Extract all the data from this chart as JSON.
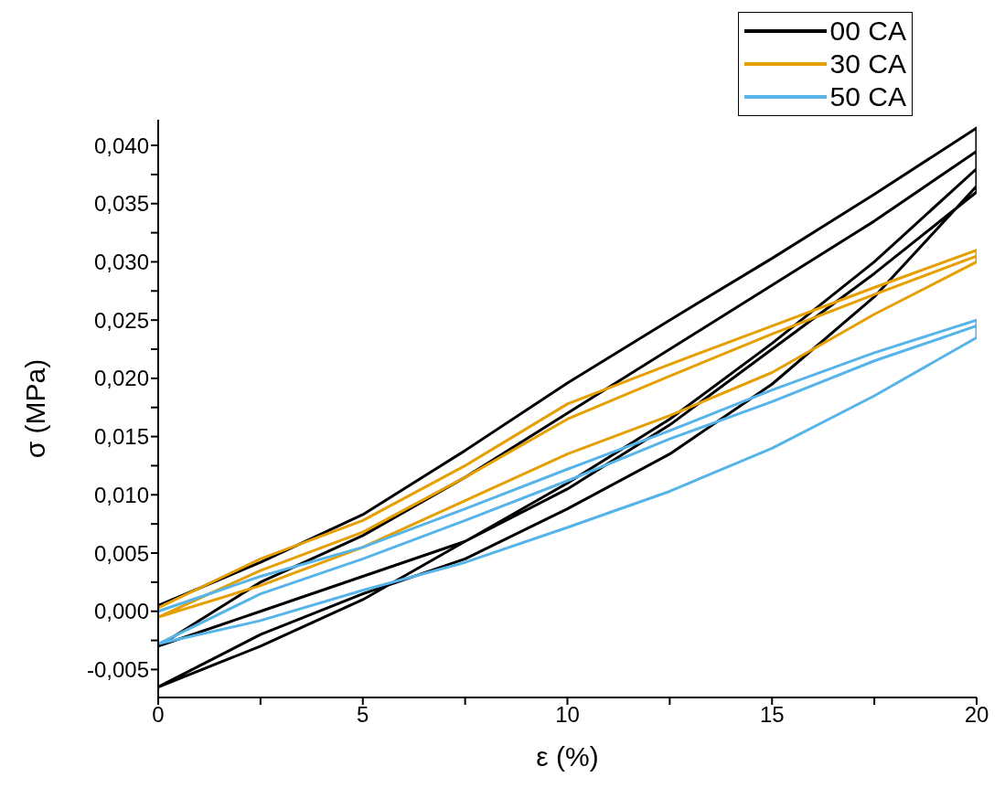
{
  "chart_data": {
    "type": "line",
    "xlabel": "ε (%)",
    "ylabel": "σ (MPa)",
    "xlim": [
      0,
      20
    ],
    "xticks": [
      0,
      {
        "value": 2.5,
        "label": null
      },
      5,
      {
        "value": 7.5,
        "label": null
      },
      10,
      {
        "value": 12.5,
        "label": null
      },
      15,
      {
        "value": 17.5,
        "label": null
      },
      20
    ],
    "ylim": [
      -0.0074,
      0.0422
    ],
    "yticks": [
      {
        "value": -0.005,
        "label": "-0,005"
      },
      {
        "value": -0.0025,
        "label": null
      },
      {
        "value": 0,
        "label": "0,000"
      },
      {
        "value": 0.0025,
        "label": null
      },
      {
        "value": 0.005,
        "label": "0,005"
      },
      {
        "value": 0.0075,
        "label": null
      },
      {
        "value": 0.01,
        "label": "0,010"
      },
      {
        "value": 0.0125,
        "label": null
      },
      {
        "value": 0.015,
        "label": "0,015"
      },
      {
        "value": 0.0175,
        "label": null
      },
      {
        "value": 0.02,
        "label": "0,020"
      },
      {
        "value": 0.0225,
        "label": null
      },
      {
        "value": 0.025,
        "label": "0,025"
      },
      {
        "value": 0.0275,
        "label": null
      },
      {
        "value": 0.03,
        "label": "0,030"
      },
      {
        "value": 0.0325,
        "label": null
      },
      {
        "value": 0.035,
        "label": "0,035"
      },
      {
        "value": 0.0375,
        "label": null
      },
      {
        "value": 0.04,
        "label": "0,040"
      }
    ],
    "legend": "top right",
    "marker": "none",
    "line_style": "solid",
    "series": [
      {
        "name": "00 CA",
        "color": "#000000",
        "x": [
          0,
          2.5,
          5,
          7.5,
          10,
          12.5,
          15,
          17.5,
          20,
          20,
          17.5,
          15,
          12.5,
          10,
          7.5,
          5,
          2.5,
          0,
          0,
          2.5,
          5,
          7.5,
          10,
          12.5,
          15,
          17.5,
          20,
          20,
          17.5,
          15,
          12.5,
          10,
          7.5,
          5,
          2.5,
          0,
          0,
          2.5,
          5,
          7.5,
          10,
          12.5,
          15,
          17.5,
          20
        ],
        "values": [
          0.0005,
          0.0042,
          0.0083,
          0.0138,
          0.0196,
          0.025,
          0.0303,
          0.0358,
          0.0415,
          0.036,
          0.029,
          0.0225,
          0.016,
          0.0105,
          0.006,
          0.003,
          0,
          -0.003,
          -0.003,
          0.0025,
          0.0065,
          0.0115,
          0.017,
          0.0225,
          0.028,
          0.0335,
          0.0395,
          0.0365,
          0.027,
          0.0195,
          0.0135,
          0.0088,
          0.0045,
          0.0015,
          -0.002,
          -0.0065,
          -0.0065,
          -0.003,
          0.001,
          0.006,
          0.011,
          0.0165,
          0.023,
          0.03,
          0.038
        ]
      },
      {
        "name": "30 CA",
        "color": "#e69f00",
        "x": [
          0,
          2.5,
          5,
          7.5,
          10,
          12.5,
          15,
          17.5,
          20,
          20,
          17.5,
          15,
          12.5,
          10,
          7.5,
          5,
          2.5,
          0,
          0,
          2.5,
          5,
          7.5,
          10,
          12.5,
          15,
          17.5,
          20
        ],
        "values": [
          0.0003,
          0.0045,
          0.0078,
          0.0125,
          0.0178,
          0.0212,
          0.0245,
          0.0278,
          0.031,
          0.03,
          0.0255,
          0.0205,
          0.0168,
          0.0135,
          0.0095,
          0.0055,
          0.0022,
          -0.0005,
          -0.0005,
          0.0035,
          0.0068,
          0.0115,
          0.0165,
          0.0202,
          0.0238,
          0.0272,
          0.0305
        ]
      },
      {
        "name": "50 CA",
        "color": "#56b4e9",
        "x": [
          0,
          2.5,
          5,
          7.5,
          10,
          12.5,
          15,
          17.5,
          20,
          20,
          17.5,
          15,
          12.5,
          10,
          7.5,
          5,
          2.5,
          0,
          0,
          2.5,
          5,
          7.5,
          10,
          12.5,
          15,
          17.5,
          20
        ],
        "values": [
          0,
          0.003,
          0.0055,
          0.0088,
          0.0122,
          0.0155,
          0.019,
          0.0222,
          0.025,
          0.0235,
          0.0185,
          0.014,
          0.0103,
          0.0072,
          0.0042,
          0.0018,
          -0.0008,
          -0.0028,
          -0.0028,
          0.0015,
          0.0045,
          0.0078,
          0.0112,
          0.0148,
          0.018,
          0.0215,
          0.0245
        ]
      }
    ]
  }
}
